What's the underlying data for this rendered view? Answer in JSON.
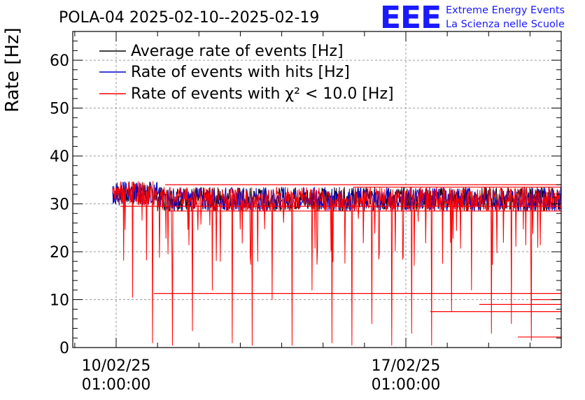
{
  "header": {
    "title": "POLA-04 2025-02-10--2025-02-19",
    "logo_letters": "EEE",
    "logo_line1": "Extreme Energy Events",
    "logo_line2": "La Scienza nelle Scuole"
  },
  "chart_data": {
    "type": "line",
    "ylabel": "Rate [Hz]",
    "xlabel": "",
    "ylim": [
      0,
      66
    ],
    "y_ticks": [
      0,
      10,
      20,
      30,
      40,
      50,
      60
    ],
    "x_ticks": [
      {
        "date": "10/02/25",
        "time": "01:00:00"
      },
      {
        "date": "17/02/25",
        "time": "01:00:00"
      }
    ],
    "grid": true,
    "legend_position": "top-left",
    "legend_entries": [
      {
        "text": "Average rate of events [Hz]",
        "color": "#000000"
      },
      {
        "text": "Rate of events with hits [Hz]",
        "color": "#0000cc"
      },
      {
        "text": "Rate of events with χ² < 10.0 [Hz]",
        "color": "#ff0000"
      }
    ],
    "series": [
      {
        "name": "Average rate of events [Hz]",
        "color": "#000000",
        "typical_value": 31
      },
      {
        "name": "Rate of events with hits [Hz]",
        "color": "#0000cc",
        "typical_value": 31
      },
      {
        "name": "Rate of events with χ² < 10.0 [Hz]",
        "color": "#ff0000",
        "typical_value": 31,
        "dips_to": [
          10.5,
          1,
          0.5,
          3.5,
          12,
          1,
          0.5,
          10,
          0.5,
          12,
          1,
          0.5,
          5,
          0.5,
          3,
          0.5,
          7.5,
          12,
          3,
          5,
          1.5
        ]
      }
    ]
  }
}
